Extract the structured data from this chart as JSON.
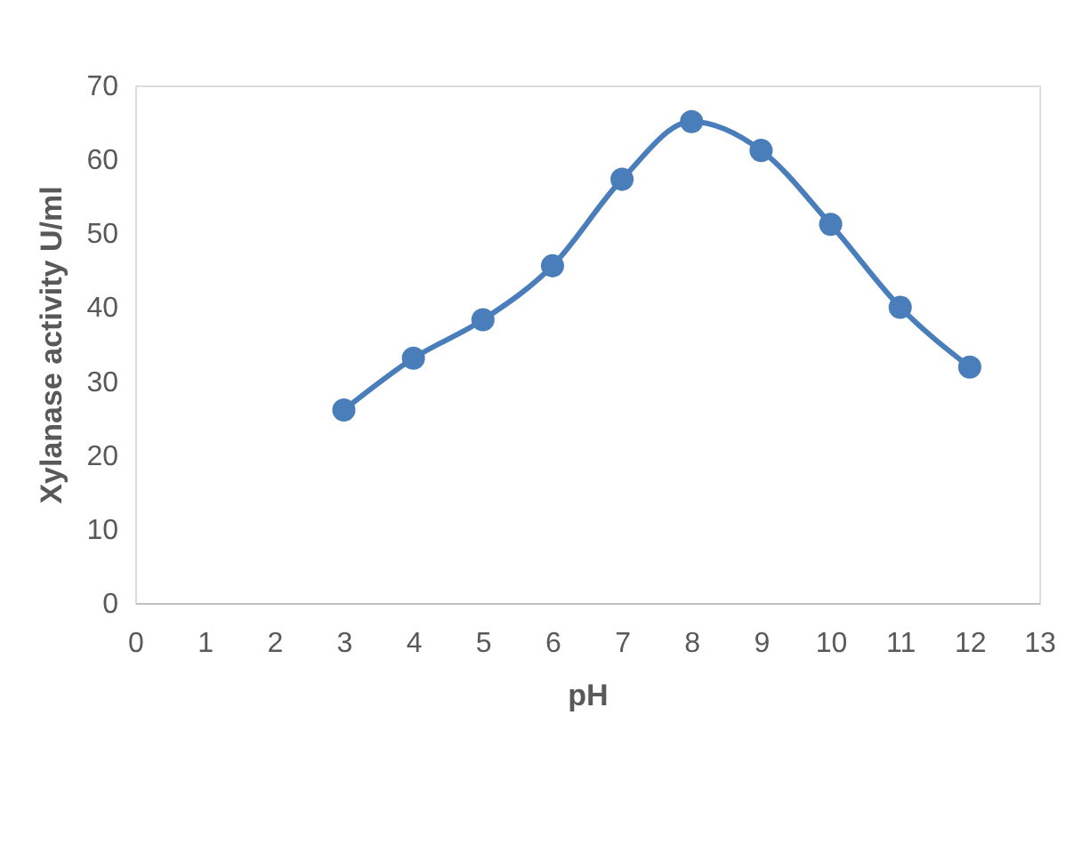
{
  "chart_data": {
    "type": "line",
    "xlabel": "pH",
    "ylabel": "Xylanase activity U/ml",
    "x": [
      3,
      4,
      5,
      6,
      7,
      8,
      9,
      10,
      11,
      12
    ],
    "series": [
      {
        "color": "#4a7ebb",
        "values": [
          26.1,
          33.1,
          38.3,
          45.6,
          57.3,
          65.1,
          61.2,
          51.2,
          40,
          31.9
        ]
      }
    ],
    "xlim": [
      0,
      13
    ],
    "xticks": [
      0,
      1,
      2,
      3,
      4,
      5,
      6,
      7,
      8,
      9,
      10,
      11,
      12,
      13
    ],
    "ylim": [
      0,
      70
    ],
    "yticks": [
      0,
      10,
      20,
      30,
      40,
      50,
      60,
      70
    ],
    "grid": false,
    "marker": "circle",
    "line_style": "solid",
    "legend": false
  }
}
